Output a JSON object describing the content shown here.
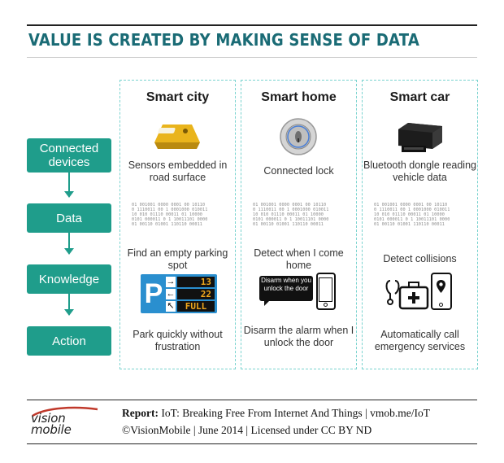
{
  "title": "VALUE IS CREATED BY MAKING SENSE OF DATA",
  "stages": [
    {
      "label": "Connected devices"
    },
    {
      "label": "Data"
    },
    {
      "label": "Knowledge"
    },
    {
      "label": "Action"
    }
  ],
  "columns": [
    {
      "heading": "Smart city",
      "device": "Sensors embedded in road surface",
      "knowledge": "Find an empty parking spot",
      "action": "Park quickly without frustration",
      "sign": {
        "letter": "P",
        "rows": [
          "13",
          "22",
          "FULL"
        ]
      }
    },
    {
      "heading": "Smart home",
      "device": "Connected lock",
      "knowledge": "Detect when I come home",
      "bubble": "Disarm when you unlock the door",
      "action": "Disarm the alarm when I unlock the door"
    },
    {
      "heading": "Smart car",
      "device": "Bluetooth dongle reading vehicle data",
      "knowledge": "Detect collisions",
      "action": "Automatically call emergency services"
    }
  ],
  "footer": {
    "report_label": "Report:",
    "report_text": "IoT: Breaking Free From Internet And Things | vmob.me/IoT",
    "credit": "©VisionMobile | June 2014 | Licensed under CC BY ND",
    "logo_top": "vision",
    "logo_bottom": "mobile"
  },
  "colors": {
    "title": "#1a6b75",
    "stage": "#1f9d8b",
    "dash": "#7ad3cf",
    "display": "#f0a81c",
    "sign_blue": "#2a8fcf"
  }
}
